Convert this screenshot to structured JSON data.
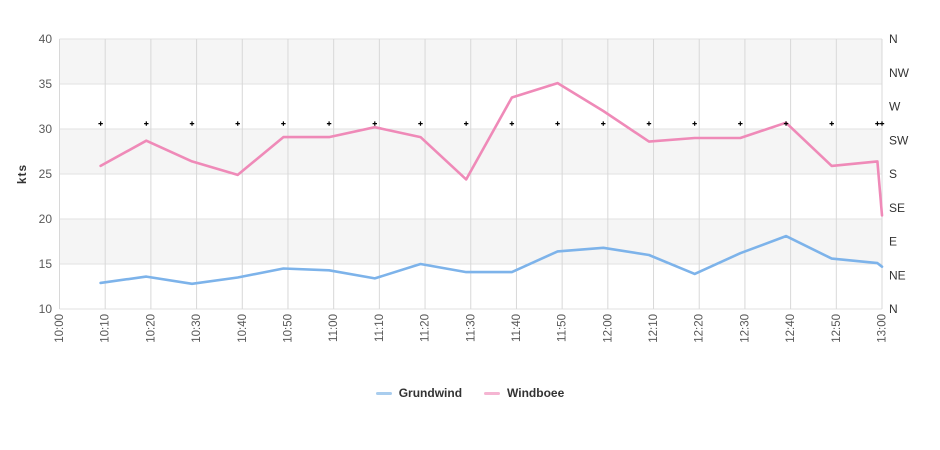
{
  "chart_data": {
    "type": "line",
    "title": "",
    "ylabel": "kts",
    "y_axis": {
      "min": 10,
      "max": 40,
      "step": 5,
      "ticks": [
        "10",
        "15",
        "20",
        "25",
        "30",
        "35",
        "40"
      ]
    },
    "direction_axis": {
      "labels_bottom_to_top": [
        "N",
        "NE",
        "E",
        "SE",
        "S",
        "SW",
        "W",
        "NW",
        "N"
      ]
    },
    "x_ticks": [
      "10:00",
      "10:10",
      "10:20",
      "10:30",
      "10:40",
      "10:50",
      "11:00",
      "11:10",
      "11:20",
      "11:30",
      "11:40",
      "11:50",
      "12:00",
      "12:10",
      "12:20",
      "12:30",
      "12:40",
      "12:50",
      "13:00"
    ],
    "x_range_minutes": [
      0,
      180
    ],
    "x_tick_step_minutes": 10,
    "series": [
      {
        "name": "Grundwind",
        "color": "#7db3ea",
        "legend_color": "#a9cdee",
        "times_min": [
          9,
          19,
          29,
          39,
          49,
          59,
          69,
          79,
          89,
          99,
          109,
          119,
          129,
          139,
          149,
          159,
          169,
          179,
          180
        ],
        "values_kts": [
          12.9,
          13.6,
          12.8,
          13.5,
          14.5,
          14.3,
          13.4,
          15.0,
          14.1,
          14.1,
          16.4,
          16.8,
          16.0,
          13.9,
          16.2,
          18.1,
          15.6,
          15.1,
          14.7
        ]
      },
      {
        "name": "Windboee",
        "color": "#ef8ab8",
        "legend_color": "#f5b5d2",
        "times_min": [
          9,
          19,
          29,
          39,
          49,
          59,
          69,
          79,
          89,
          99,
          109,
          119,
          129,
          139,
          149,
          159,
          169,
          179,
          180
        ],
        "values_kts": [
          25.9,
          28.7,
          26.4,
          24.9,
          29.1,
          29.1,
          30.2,
          29.1,
          24.4,
          33.5,
          35.1,
          32.0,
          28.6,
          29.0,
          29.0,
          30.7,
          25.9,
          26.4,
          20.4
        ]
      }
    ],
    "direction_markers": {
      "marker": "plus",
      "color": "#000000",
      "plotted_at_kts": 30.6,
      "approx_direction": "WSW",
      "times_min": [
        9,
        19,
        29,
        39,
        49,
        59,
        69,
        79,
        89,
        99,
        109,
        119,
        129,
        139,
        149,
        159,
        169,
        179,
        180
      ]
    },
    "legend": [
      {
        "label": "Grundwind"
      },
      {
        "label": "Windboee"
      }
    ],
    "style": {
      "band_color": "#f5f5f5",
      "gray_bands_kts": [
        [
          15,
          20
        ],
        [
          25,
          30
        ],
        [
          35,
          40
        ]
      ],
      "vgrid_color": "#d8d8d8",
      "hgrid_color": "#e2e2e2",
      "tick_text_color": "#595959",
      "direction_text_color": "#333333",
      "axis_title_color": "#333333"
    }
  }
}
